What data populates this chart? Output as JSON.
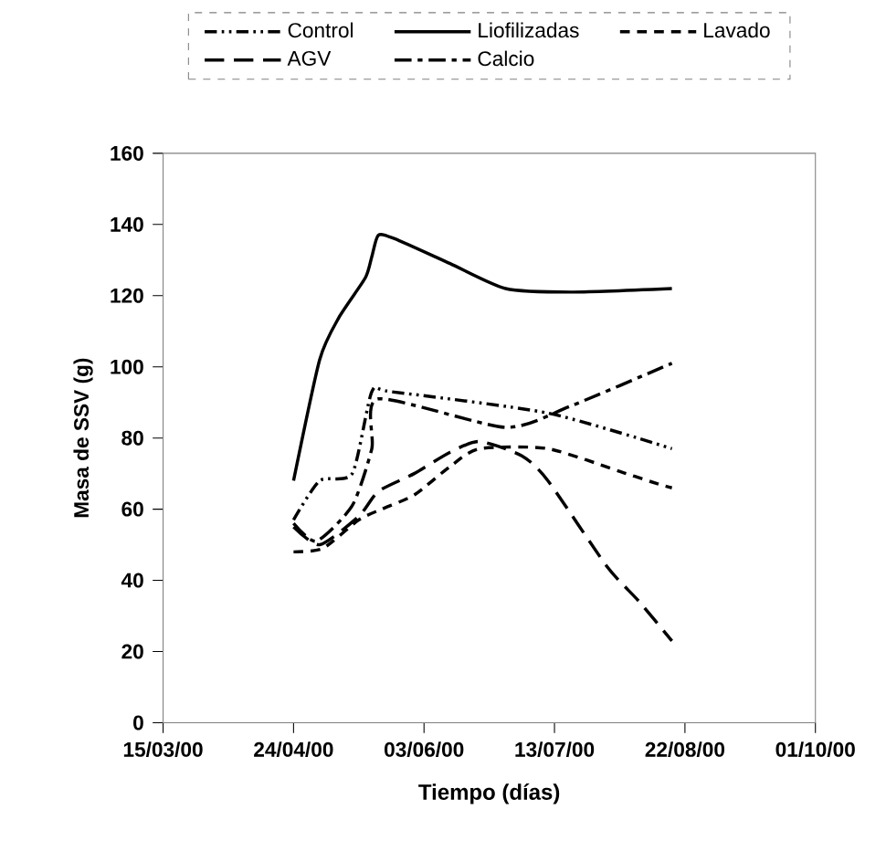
{
  "chart_data": {
    "type": "line",
    "xlabel": "Tiempo (días)",
    "ylabel": "Masa de SSV (g)",
    "xlim": [
      "2000-03-15",
      "2000-10-01"
    ],
    "xticks": [
      {
        "value": "2000-03-15",
        "label": "15/03/00"
      },
      {
        "value": "2000-04-24",
        "label": "24/04/00"
      },
      {
        "value": "2000-06-03",
        "label": "03/06/00"
      },
      {
        "value": "2000-07-13",
        "label": "13/07/00"
      },
      {
        "value": "2000-08-22",
        "label": "22/08/00"
      },
      {
        "value": "2000-10-01",
        "label": "01/10/00"
      }
    ],
    "ylim": [
      0,
      160
    ],
    "yticks": [
      0,
      20,
      40,
      60,
      80,
      100,
      120,
      140,
      160
    ],
    "legend": "top",
    "grid": false,
    "series": [
      {
        "name": "Control",
        "color": "#000000",
        "line_style": "dashdotdotted",
        "x": [
          "2000-04-24",
          "2000-05-02",
          "2000-05-12",
          "2000-05-18",
          "2000-05-24",
          "2000-07-11",
          "2000-08-18"
        ],
        "values": [
          57,
          68,
          70,
          93,
          93,
          87,
          77
        ]
      },
      {
        "name": "Liofilizadas",
        "color": "#000000",
        "line_style": "solid",
        "x": [
          "2000-04-24",
          "2000-05-02",
          "2000-05-08",
          "2000-05-16",
          "2000-05-18",
          "2000-05-20",
          "2000-05-25",
          "2000-06-11",
          "2000-06-28",
          "2000-07-18",
          "2000-08-18"
        ],
        "values": [
          68,
          102,
          114,
          125,
          131,
          137,
          136,
          129,
          122,
          121,
          122
        ]
      },
      {
        "name": "Lavado",
        "color": "#000000",
        "line_style": "dashed",
        "x": [
          "2000-04-24",
          "2000-05-03",
          "2000-05-14",
          "2000-05-21",
          "2000-05-31",
          "2000-06-11",
          "2000-06-20",
          "2000-07-11",
          "2000-08-04",
          "2000-08-14",
          "2000-08-18"
        ],
        "values": [
          48,
          49,
          57,
          60,
          64,
          72,
          77,
          77,
          70,
          67,
          66
        ]
      },
      {
        "name": "AGV",
        "color": "#000000",
        "line_style": "loosely dashed",
        "x": [
          "2000-04-24",
          "2000-05-02",
          "2000-05-14",
          "2000-05-20",
          "2000-05-31",
          "2000-06-11",
          "2000-06-20",
          "2000-07-03",
          "2000-07-11",
          "2000-07-29",
          "2000-08-08",
          "2000-08-18"
        ],
        "values": [
          55,
          50,
          58,
          65,
          70,
          76,
          79,
          75,
          68,
          44,
          34,
          23
        ]
      },
      {
        "name": "Calcio",
        "color": "#000000",
        "line_style": "dashdotted",
        "x": [
          "2000-04-24",
          "2000-05-01",
          "2000-05-12",
          "2000-05-18",
          "2000-05-20",
          "2000-06-28",
          "2000-07-18",
          "2000-08-18"
        ],
        "values": [
          56,
          51,
          61,
          77,
          91,
          83,
          89,
          101
        ]
      }
    ]
  }
}
